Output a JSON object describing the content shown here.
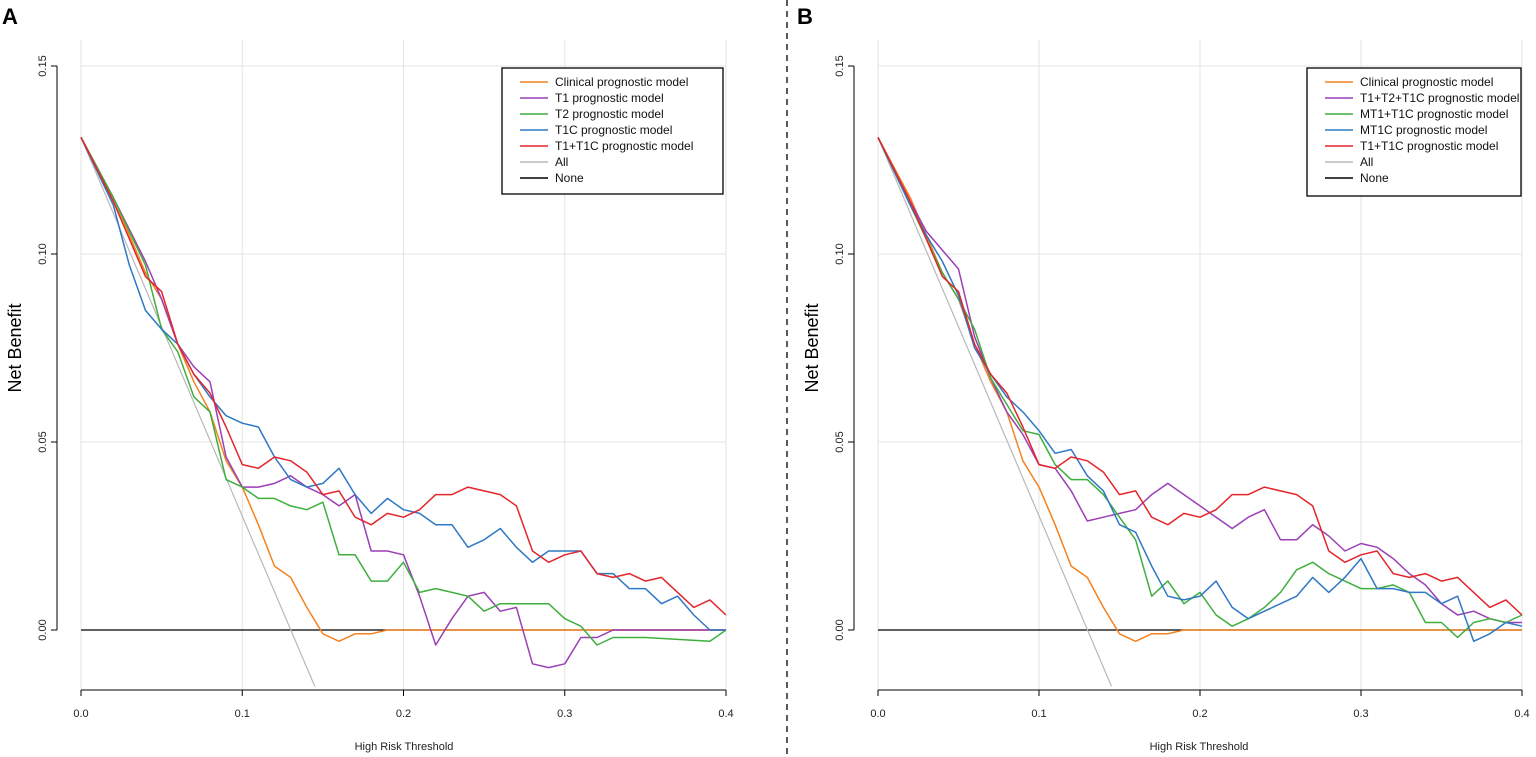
{
  "colors": {
    "orange": "#f58220",
    "purple": "#9b3fb5",
    "green": "#3fae3f",
    "blue": "#2f78c4",
    "red": "#e3262c",
    "all": "#b8b8b8",
    "none": "#000000",
    "grid": "#e3e3e3"
  },
  "chart_data": [
    {
      "panel": "A",
      "type": "line",
      "xlabel": "High Risk Threshold",
      "ylabel": "Net Benefit",
      "xlim": [
        0,
        0.4
      ],
      "ylim": [
        -0.015,
        0.15
      ],
      "xticks": [
        "0.0",
        "0.1",
        "0.2",
        "0.3",
        "0.4"
      ],
      "yticks": [
        "0.00",
        "0.05",
        "0.10",
        "0.15"
      ],
      "legend_position": "top-right",
      "series": [
        {
          "name": "Clinical prognostic model",
          "color_key": "orange",
          "x": [
            0,
            0.02,
            0.04,
            0.05,
            0.06,
            0.07,
            0.08,
            0.09,
            0.1,
            0.11,
            0.12,
            0.13,
            0.14,
            0.15,
            0.16,
            0.17,
            0.18,
            0.19,
            0.2,
            0.4
          ],
          "y": [
            0.131,
            0.115,
            0.095,
            0.088,
            0.076,
            0.066,
            0.058,
            0.045,
            0.038,
            0.028,
            0.017,
            0.014,
            0.006,
            -0.001,
            -0.003,
            -0.001,
            -0.001,
            0,
            0,
            0
          ]
        },
        {
          "name": "T1 prognostic model",
          "color_key": "purple",
          "x": [
            0,
            0.02,
            0.04,
            0.05,
            0.06,
            0.07,
            0.08,
            0.09,
            0.1,
            0.11,
            0.12,
            0.13,
            0.14,
            0.15,
            0.16,
            0.17,
            0.18,
            0.19,
            0.2,
            0.21,
            0.22,
            0.23,
            0.24,
            0.25,
            0.26,
            0.27,
            0.28,
            0.29,
            0.3,
            0.31,
            0.32,
            0.33,
            0.35,
            0.4
          ],
          "y": [
            0.131,
            0.115,
            0.098,
            0.088,
            0.076,
            0.07,
            0.066,
            0.046,
            0.038,
            0.038,
            0.039,
            0.041,
            0.038,
            0.036,
            0.033,
            0.036,
            0.021,
            0.021,
            0.02,
            0.009,
            -0.004,
            0.003,
            0.009,
            0.01,
            0.005,
            0.006,
            -0.009,
            -0.01,
            -0.009,
            -0.002,
            -0.002,
            0,
            0,
            0
          ]
        },
        {
          "name": "T2 prognostic model",
          "color_key": "green",
          "x": [
            0,
            0.02,
            0.04,
            0.05,
            0.06,
            0.07,
            0.08,
            0.09,
            0.1,
            0.11,
            0.12,
            0.13,
            0.14,
            0.15,
            0.16,
            0.17,
            0.18,
            0.19,
            0.2,
            0.21,
            0.22,
            0.23,
            0.24,
            0.25,
            0.26,
            0.27,
            0.28,
            0.29,
            0.3,
            0.31,
            0.32,
            0.33,
            0.35,
            0.39,
            0.4
          ],
          "y": [
            0.131,
            0.115,
            0.097,
            0.08,
            0.074,
            0.062,
            0.058,
            0.04,
            0.038,
            0.035,
            0.035,
            0.033,
            0.032,
            0.034,
            0.02,
            0.02,
            0.013,
            0.013,
            0.018,
            0.01,
            0.011,
            0.01,
            0.009,
            0.005,
            0.007,
            0.007,
            0.007,
            0.007,
            0.003,
            0.001,
            -0.004,
            -0.002,
            -0.002,
            -0.003,
            0
          ]
        },
        {
          "name": "T1C prognostic model",
          "color_key": "blue",
          "x": [
            0,
            0.02,
            0.03,
            0.04,
            0.05,
            0.06,
            0.07,
            0.08,
            0.09,
            0.1,
            0.11,
            0.12,
            0.13,
            0.14,
            0.15,
            0.16,
            0.17,
            0.18,
            0.19,
            0.2,
            0.21,
            0.22,
            0.23,
            0.24,
            0.25,
            0.26,
            0.27,
            0.28,
            0.29,
            0.3,
            0.31,
            0.32,
            0.33,
            0.34,
            0.35,
            0.36,
            0.37,
            0.38,
            0.39,
            0.4
          ],
          "y": [
            0.131,
            0.113,
            0.097,
            0.085,
            0.08,
            0.076,
            0.068,
            0.062,
            0.057,
            0.055,
            0.054,
            0.046,
            0.04,
            0.038,
            0.039,
            0.043,
            0.036,
            0.031,
            0.035,
            0.032,
            0.031,
            0.028,
            0.028,
            0.022,
            0.024,
            0.027,
            0.022,
            0.018,
            0.021,
            0.021,
            0.021,
            0.015,
            0.015,
            0.011,
            0.011,
            0.007,
            0.009,
            0.004,
            0,
            0
          ]
        },
        {
          "name": "T1+T1C prognostic model",
          "color_key": "red",
          "x": [
            0,
            0.02,
            0.04,
            0.05,
            0.06,
            0.07,
            0.08,
            0.09,
            0.1,
            0.11,
            0.12,
            0.13,
            0.14,
            0.15,
            0.16,
            0.17,
            0.18,
            0.19,
            0.2,
            0.21,
            0.22,
            0.23,
            0.24,
            0.25,
            0.26,
            0.27,
            0.28,
            0.29,
            0.3,
            0.31,
            0.32,
            0.33,
            0.34,
            0.35,
            0.36,
            0.37,
            0.38,
            0.39,
            0.4
          ],
          "y": [
            0.131,
            0.114,
            0.094,
            0.09,
            0.076,
            0.068,
            0.063,
            0.054,
            0.044,
            0.043,
            0.046,
            0.045,
            0.042,
            0.036,
            0.037,
            0.03,
            0.028,
            0.031,
            0.03,
            0.032,
            0.036,
            0.036,
            0.038,
            0.037,
            0.036,
            0.033,
            0.021,
            0.018,
            0.02,
            0.021,
            0.015,
            0.014,
            0.015,
            0.013,
            0.014,
            0.01,
            0.006,
            0.008,
            0.004
          ]
        },
        {
          "name": "All",
          "color_key": "all",
          "x": [
            0,
            0.145
          ],
          "y": [
            0.131,
            -0.015
          ]
        },
        {
          "name": "None",
          "color_key": "none",
          "x": [
            0,
            0.4
          ],
          "y": [
            0,
            0
          ]
        }
      ]
    },
    {
      "panel": "B",
      "type": "line",
      "xlabel": "High Risk Threshold",
      "ylabel": "Net Benefit",
      "xlim": [
        0,
        0.4
      ],
      "ylim": [
        -0.015,
        0.15
      ],
      "xticks": [
        "0.0",
        "0.1",
        "0.2",
        "0.3",
        "0.4"
      ],
      "yticks": [
        "0.00",
        "0.05",
        "0.10",
        "0.15"
      ],
      "legend_position": "top-right",
      "series": [
        {
          "name": "Clinical prognostic model",
          "color_key": "orange",
          "x": [
            0,
            0.02,
            0.04,
            0.05,
            0.06,
            0.07,
            0.08,
            0.09,
            0.1,
            0.11,
            0.12,
            0.13,
            0.14,
            0.15,
            0.16,
            0.17,
            0.18,
            0.19,
            0.2,
            0.4
          ],
          "y": [
            0.131,
            0.115,
            0.095,
            0.088,
            0.076,
            0.066,
            0.058,
            0.045,
            0.038,
            0.028,
            0.017,
            0.014,
            0.006,
            -0.001,
            -0.003,
            -0.001,
            -0.001,
            0,
            0,
            0
          ]
        },
        {
          "name": "T1+T2+T1C prognostic model",
          "color_key": "purple",
          "x": [
            0,
            0.02,
            0.03,
            0.04,
            0.05,
            0.06,
            0.07,
            0.08,
            0.09,
            0.1,
            0.11,
            0.12,
            0.13,
            0.14,
            0.15,
            0.16,
            0.17,
            0.18,
            0.19,
            0.2,
            0.21,
            0.22,
            0.23,
            0.24,
            0.25,
            0.26,
            0.27,
            0.28,
            0.29,
            0.3,
            0.31,
            0.32,
            0.33,
            0.34,
            0.35,
            0.36,
            0.37,
            0.38,
            0.39,
            0.4
          ],
          "y": [
            0.131,
            0.114,
            0.106,
            0.101,
            0.096,
            0.078,
            0.067,
            0.058,
            0.052,
            0.044,
            0.043,
            0.037,
            0.029,
            0.03,
            0.031,
            0.032,
            0.036,
            0.039,
            0.036,
            0.033,
            0.03,
            0.027,
            0.03,
            0.032,
            0.024,
            0.024,
            0.028,
            0.025,
            0.021,
            0.023,
            0.022,
            0.019,
            0.015,
            0.012,
            0.007,
            0.004,
            0.005,
            0.003,
            0.002,
            0.002
          ]
        },
        {
          "name": "MT1+T1C prognostic model",
          "color_key": "green",
          "x": [
            0,
            0.02,
            0.04,
            0.05,
            0.06,
            0.07,
            0.08,
            0.09,
            0.1,
            0.11,
            0.12,
            0.13,
            0.14,
            0.15,
            0.16,
            0.17,
            0.18,
            0.19,
            0.2,
            0.21,
            0.22,
            0.23,
            0.24,
            0.25,
            0.26,
            0.27,
            0.28,
            0.29,
            0.3,
            0.31,
            0.32,
            0.33,
            0.34,
            0.35,
            0.36,
            0.37,
            0.38,
            0.39,
            0.4
          ],
          "y": [
            0.131,
            0.113,
            0.095,
            0.088,
            0.08,
            0.067,
            0.06,
            0.053,
            0.052,
            0.044,
            0.04,
            0.04,
            0.036,
            0.03,
            0.024,
            0.009,
            0.013,
            0.007,
            0.01,
            0.004,
            0.001,
            0.003,
            0.006,
            0.01,
            0.016,
            0.018,
            0.015,
            0.013,
            0.011,
            0.011,
            0.012,
            0.01,
            0.002,
            0.002,
            -0.002,
            0.002,
            0.003,
            0.002,
            0.004
          ]
        },
        {
          "name": "MT1C prognostic model",
          "color_key": "blue",
          "x": [
            0,
            0.02,
            0.03,
            0.04,
            0.05,
            0.06,
            0.07,
            0.08,
            0.09,
            0.1,
            0.11,
            0.12,
            0.13,
            0.14,
            0.15,
            0.16,
            0.17,
            0.18,
            0.19,
            0.2,
            0.21,
            0.22,
            0.23,
            0.24,
            0.25,
            0.26,
            0.27,
            0.28,
            0.29,
            0.3,
            0.31,
            0.32,
            0.33,
            0.34,
            0.35,
            0.36,
            0.37,
            0.38,
            0.39,
            0.4
          ],
          "y": [
            0.131,
            0.113,
            0.105,
            0.098,
            0.089,
            0.075,
            0.068,
            0.062,
            0.058,
            0.053,
            0.047,
            0.048,
            0.041,
            0.037,
            0.028,
            0.026,
            0.017,
            0.009,
            0.008,
            0.009,
            0.013,
            0.006,
            0.003,
            0.005,
            0.007,
            0.009,
            0.014,
            0.01,
            0.014,
            0.019,
            0.011,
            0.011,
            0.01,
            0.01,
            0.007,
            0.009,
            -0.003,
            -0.001,
            0.002,
            0.001
          ]
        },
        {
          "name": "T1+T1C prognostic model",
          "color_key": "red",
          "x": [
            0,
            0.02,
            0.04,
            0.05,
            0.06,
            0.07,
            0.08,
            0.09,
            0.1,
            0.11,
            0.12,
            0.13,
            0.14,
            0.15,
            0.16,
            0.17,
            0.18,
            0.19,
            0.2,
            0.21,
            0.22,
            0.23,
            0.24,
            0.25,
            0.26,
            0.27,
            0.28,
            0.29,
            0.3,
            0.31,
            0.32,
            0.33,
            0.34,
            0.35,
            0.36,
            0.37,
            0.38,
            0.39,
            0.4
          ],
          "y": [
            0.131,
            0.114,
            0.094,
            0.09,
            0.076,
            0.068,
            0.063,
            0.054,
            0.044,
            0.043,
            0.046,
            0.045,
            0.042,
            0.036,
            0.037,
            0.03,
            0.028,
            0.031,
            0.03,
            0.032,
            0.036,
            0.036,
            0.038,
            0.037,
            0.036,
            0.033,
            0.021,
            0.018,
            0.02,
            0.021,
            0.015,
            0.014,
            0.015,
            0.013,
            0.014,
            0.01,
            0.006,
            0.008,
            0.004
          ]
        },
        {
          "name": "All",
          "color_key": "all",
          "x": [
            0,
            0.145
          ],
          "y": [
            0.131,
            -0.015
          ]
        },
        {
          "name": "None",
          "color_key": "none",
          "x": [
            0,
            0.4
          ],
          "y": [
            0,
            0
          ]
        }
      ]
    }
  ]
}
